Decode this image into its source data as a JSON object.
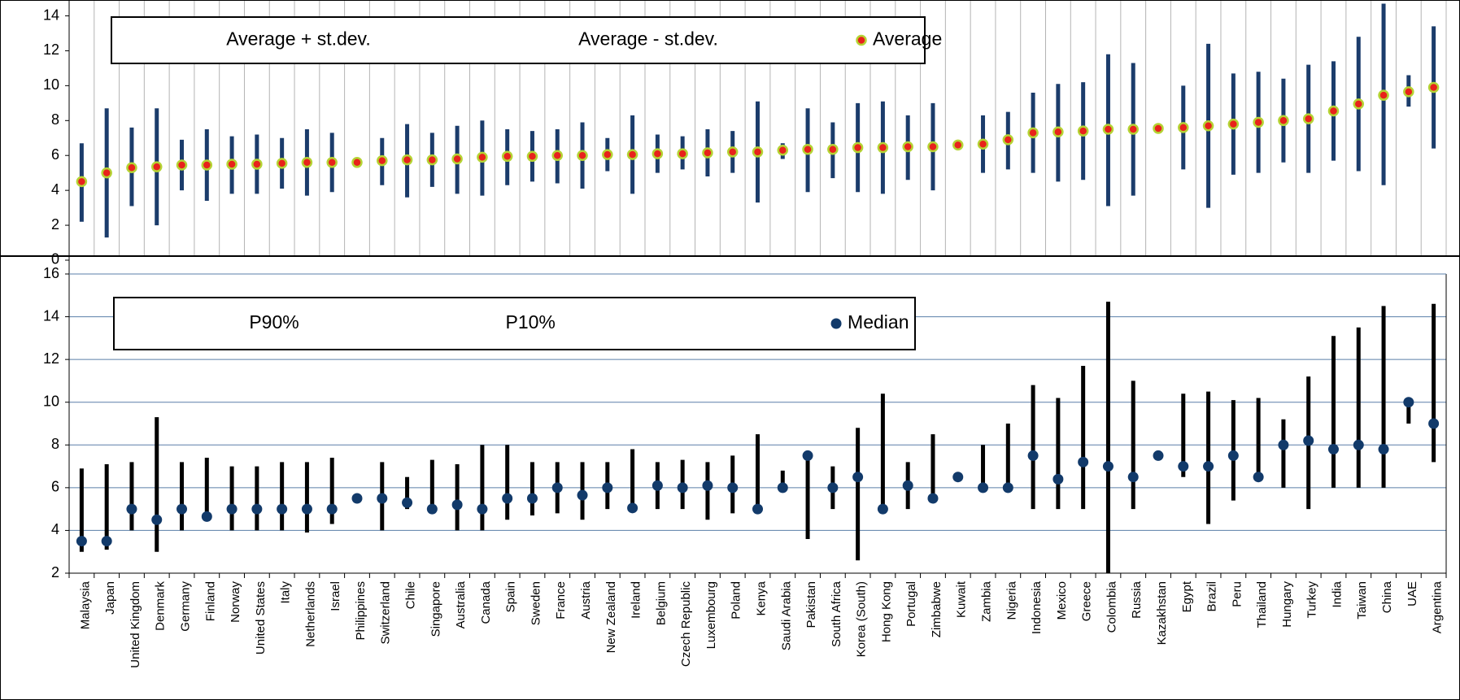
{
  "chart_data": [
    {
      "type": "range",
      "series": [
        {
          "name": "Average + st.dev.",
          "color": "#1b3c6b",
          "values": [
            6.7,
            8.7,
            7.6,
            8.7,
            6.9,
            7.5,
            7.1,
            7.2,
            7.0,
            7.5,
            7.3,
            5.8,
            7.0,
            7.8,
            7.3,
            7.7,
            8.0,
            7.5,
            7.4,
            7.5,
            7.9,
            7.0,
            8.3,
            7.2,
            7.1,
            7.5,
            7.4,
            9.1,
            6.7,
            8.7,
            7.9,
            9.0,
            9.1,
            8.3,
            9.0,
            6.7,
            8.3,
            8.5,
            9.6,
            10.1,
            10.2,
            11.8,
            11.3,
            7.6,
            10.0,
            12.4,
            10.7,
            10.8,
            10.4,
            11.2,
            11.4,
            12.8,
            14.7,
            10.6,
            13.4
          ]
        },
        {
          "name": "Average - st.dev.",
          "color": "#1b3c6b",
          "values": [
            2.2,
            1.3,
            3.1,
            2.0,
            4.0,
            3.4,
            3.8,
            3.8,
            4.1,
            3.7,
            3.9,
            5.4,
            4.3,
            3.6,
            4.2,
            3.8,
            3.7,
            4.3,
            4.5,
            4.4,
            4.1,
            5.1,
            3.8,
            5.0,
            5.2,
            4.8,
            5.0,
            3.3,
            5.8,
            3.9,
            4.7,
            3.9,
            3.8,
            4.6,
            4.0,
            6.5,
            5.0,
            5.2,
            5.0,
            4.5,
            4.6,
            3.1,
            3.7,
            7.5,
            5.2,
            3.0,
            4.9,
            5.0,
            5.6,
            5.0,
            5.7,
            5.1,
            4.3,
            8.8,
            6.4
          ]
        },
        {
          "name": "Average",
          "color": "#e8221b",
          "edgecolor": "#b5d334",
          "values": [
            4.5,
            5.0,
            5.3,
            5.35,
            5.45,
            5.45,
            5.5,
            5.5,
            5.55,
            5.6,
            5.6,
            5.6,
            5.7,
            5.75,
            5.75,
            5.8,
            5.9,
            5.95,
            5.95,
            6.0,
            6.0,
            6.05,
            6.05,
            6.1,
            6.1,
            6.15,
            6.2,
            6.2,
            6.3,
            6.35,
            6.35,
            6.45,
            6.45,
            6.5,
            6.5,
            6.6,
            6.65,
            6.9,
            7.3,
            7.35,
            7.4,
            7.5,
            7.5,
            7.55,
            7.6,
            7.7,
            7.8,
            7.9,
            8.0,
            8.1,
            8.55,
            8.95,
            9.45,
            9.65,
            9.9
          ]
        }
      ],
      "ylim": [
        0.2,
        14.7
      ],
      "yticks": [
        0,
        2,
        4,
        6,
        8,
        10,
        12,
        14
      ],
      "grid": "x",
      "legend": "top"
    },
    {
      "type": "range",
      "categories": [
        "Malaysia",
        "Japan",
        "United Kingdom",
        "Denmark",
        "Germany",
        "Finland",
        "Norway",
        "United States",
        "Italy",
        "Netherlands",
        "Israel",
        "Philippines",
        "Switzerland",
        "Chile",
        "Singapore",
        "Australia",
        "Canada",
        "Spain",
        "Sweden",
        "France",
        "Austria",
        "New Zealand",
        "Ireland",
        "Belgium",
        "Czech Republic",
        "Luxembourg",
        "Poland",
        "Kenya",
        "Saudi Arabia",
        "Pakistan",
        "South Africa",
        "Korea (South)",
        "Hong Kong",
        "Portugal",
        "Zimbabwe",
        "Kuwait",
        "Zambia",
        "Nigeria",
        "Indonesia",
        "Mexico",
        "Greece",
        "Colombia",
        "Russia",
        "Kazakhstan",
        "Egypt",
        "Brazil",
        "Peru",
        "Thailand",
        "Hungary",
        "Turkey",
        "India",
        "Taiwan",
        "China",
        "UAE",
        "Argentina"
      ],
      "series": [
        {
          "name": "P90%",
          "color": "#000000",
          "values": [
            6.9,
            7.1,
            7.2,
            9.3,
            7.2,
            7.4,
            7.0,
            7.0,
            7.2,
            7.2,
            7.4,
            5.7,
            7.2,
            6.5,
            7.3,
            7.1,
            8.0,
            8.0,
            7.2,
            7.2,
            7.2,
            7.2,
            7.8,
            7.2,
            7.3,
            7.2,
            7.5,
            8.5,
            6.8,
            7.5,
            7.0,
            8.8,
            10.4,
            7.2,
            8.5,
            6.7,
            8.0,
            9.0,
            10.8,
            10.2,
            11.7,
            14.7,
            11.0,
            7.5,
            10.4,
            10.5,
            10.1,
            10.2,
            9.2,
            11.2,
            13.1,
            13.5,
            14.5,
            10.0,
            14.6
          ]
        },
        {
          "name": "P10%",
          "color": "#000000",
          "values": [
            3.0,
            3.1,
            4.0,
            3.0,
            4.0,
            4.6,
            4.0,
            4.0,
            4.0,
            3.9,
            4.3,
            5.4,
            4.0,
            5.0,
            5.0,
            4.0,
            4.0,
            4.5,
            4.7,
            4.8,
            4.5,
            5.0,
            5.0,
            5.0,
            5.0,
            4.5,
            4.8,
            5.0,
            6.0,
            3.6,
            5.0,
            2.6,
            5.0,
            5.0,
            5.5,
            6.4,
            6.0,
            6.0,
            5.0,
            5.0,
            5.0,
            2.0,
            5.0,
            7.5,
            6.5,
            4.3,
            5.4,
            6.5,
            6.0,
            5.0,
            6.0,
            6.0,
            6.0,
            9.0,
            7.2
          ]
        },
        {
          "name": "Median",
          "color": "#123a6a",
          "values": [
            3.5,
            3.5,
            5.0,
            4.5,
            5.0,
            4.65,
            5.0,
            5.0,
            5.0,
            5.0,
            5.0,
            5.5,
            5.5,
            5.3,
            5.0,
            5.2,
            5.0,
            5.5,
            5.5,
            6.0,
            5.65,
            6.0,
            5.05,
            6.1,
            6.0,
            6.1,
            6.0,
            5.0,
            6.0,
            7.5,
            6.0,
            6.5,
            5.0,
            6.1,
            5.5,
            6.5,
            6.0,
            6.0,
            7.5,
            6.4,
            7.2,
            7.0,
            6.5,
            7.5,
            7.0,
            7.0,
            7.5,
            6.5,
            8.0,
            8.2,
            7.8,
            8.0,
            7.8,
            10.0,
            9.0
          ]
        }
      ],
      "ylim": [
        2,
        16
      ],
      "yticks": [
        2,
        4,
        6,
        8,
        10,
        12,
        14,
        16
      ],
      "grid": "y",
      "legend": "top"
    }
  ]
}
